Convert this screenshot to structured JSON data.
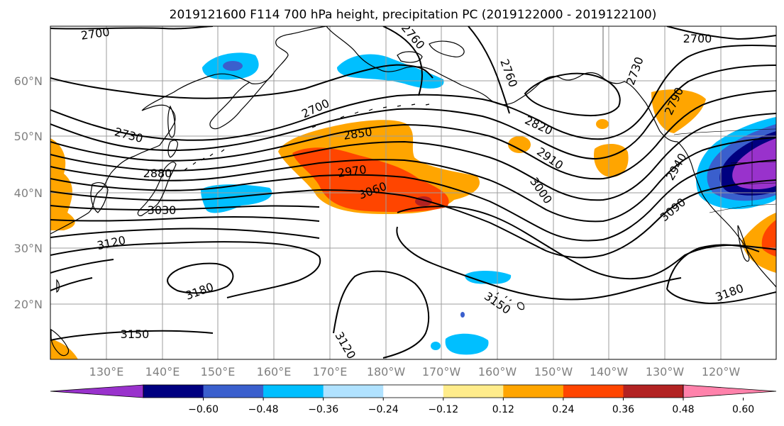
{
  "title": "2019121600 F114 700 hPa height, precipitation PC (2019122000 - 2019122100)",
  "lat_labels": [
    "60°N",
    "50°N",
    "40°N",
    "30°N",
    "20°N"
  ],
  "lon_labels": [
    "130°E",
    "140°E",
    "150°E",
    "160°E",
    "170°E",
    "180°W",
    "170°W",
    "160°W",
    "150°W",
    "140°W",
    "130°W",
    "120°W"
  ],
  "contour_labels": [
    "2700",
    "2760",
    "2760",
    "2700",
    "2730",
    "2700",
    "2790",
    "2730",
    "2850",
    "2820",
    "2880",
    "2910",
    "2970",
    "2940",
    "3000",
    "3030",
    "3060",
    "3090",
    "3120",
    "3180",
    "3150",
    "3180",
    "3150",
    "3120"
  ],
  "colorbar": {
    "colors": [
      "#9932cc",
      "#000080",
      "#3a5fcd",
      "#00bfff",
      "#b0e2ff",
      "#ffffff",
      "#ffec8b",
      "#ffa500",
      "#ff4500",
      "#b22222",
      "#ff82ab"
    ],
    "tick_labels": [
      "−0.60",
      "−0.48",
      "−0.36",
      "−0.24",
      "−0.12",
      "0.12",
      "0.24",
      "0.36",
      "0.48",
      "0.60"
    ]
  }
}
